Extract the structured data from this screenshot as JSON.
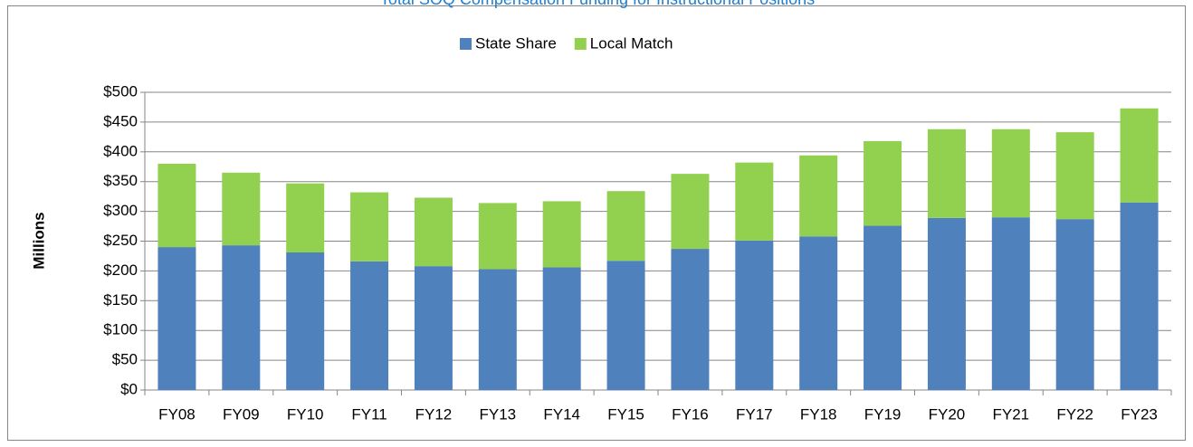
{
  "chart_data": {
    "type": "stacked_bar",
    "title": "Total SOQ Compensation Funding for Instructional Positions",
    "y_label": "Millions",
    "categories": [
      "FY08",
      "FY09",
      "FY10",
      "FY11",
      "FY12",
      "FY13",
      "FY14",
      "FY15",
      "FY16",
      "FY17",
      "FY18",
      "FY19",
      "FY20",
      "FY21",
      "FY22",
      "FY23"
    ],
    "series": [
      {
        "name": "State Share",
        "color": "#4f81bd",
        "values": [
          240,
          243,
          231,
          216,
          208,
          203,
          206,
          217,
          237,
          251,
          258,
          276,
          289,
          290,
          287,
          315
        ]
      },
      {
        "name": "Local Match",
        "color": "#92d050",
        "values": [
          140,
          122,
          116,
          116,
          115,
          111,
          111,
          117,
          126,
          131,
          136,
          142,
          149,
          148,
          146,
          158
        ]
      }
    ],
    "ylim": [
      0,
      500
    ],
    "yticks": [
      {
        "value": 0,
        "label": "$0"
      },
      {
        "value": 50,
        "label": "$50"
      },
      {
        "value": 100,
        "label": "$100"
      },
      {
        "value": 150,
        "label": "$150"
      },
      {
        "value": 200,
        "label": "$200"
      },
      {
        "value": 250,
        "label": "$250"
      },
      {
        "value": 300,
        "label": "$300"
      },
      {
        "value": 350,
        "label": "$350"
      },
      {
        "value": 400,
        "label": "$400"
      },
      {
        "value": 450,
        "label": "$450"
      },
      {
        "value": 500,
        "label": "$500"
      }
    ],
    "grid": true,
    "legend": "top"
  }
}
